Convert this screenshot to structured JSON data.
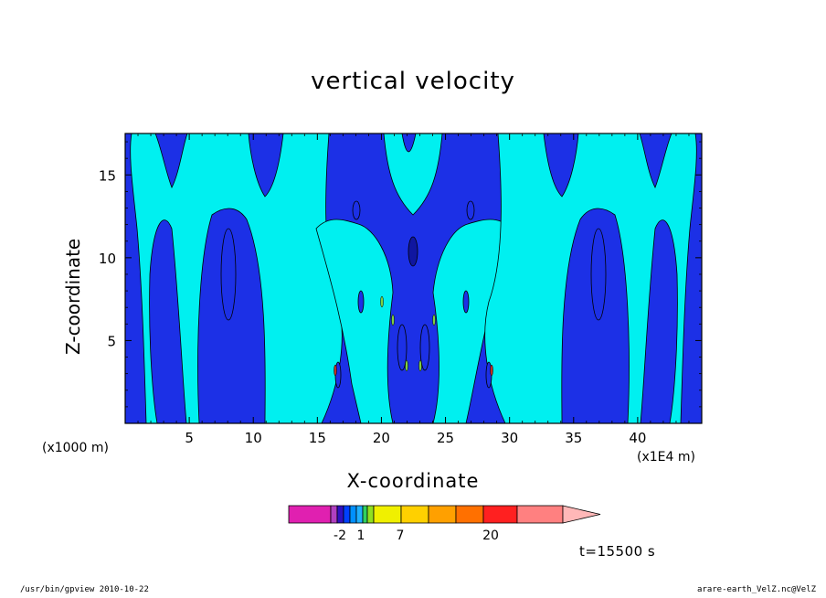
{
  "chart_data": {
    "type": "heatmap",
    "title": "vertical velocity",
    "xlabel": "X-coordinate",
    "ylabel": "Z-coordinate",
    "x_unit_left": "(x1000 m)",
    "x_unit_right": "(x1E4 m)",
    "xlim": [
      0,
      45
    ],
    "ylim": [
      0,
      17.5
    ],
    "x_ticks": [
      "5",
      "10",
      "15",
      "20",
      "25",
      "30",
      "35",
      "40"
    ],
    "y_ticks": [
      "5",
      "10",
      "15"
    ],
    "x_tick_values": [
      5,
      10,
      15,
      20,
      25,
      30,
      35,
      40
    ],
    "y_tick_values": [
      5,
      10,
      15
    ],
    "colorbar": {
      "labels": [
        "-2",
        "1",
        "7",
        "20"
      ],
      "colors": [
        "#e020b0",
        "#b040c0",
        "#3010c0",
        "#0040ff",
        "#0090ff",
        "#20b0ff",
        "#30d060",
        "#90e020",
        "#f0f000",
        "#ffd000",
        "#ffa000",
        "#ff7000",
        "#ff2020",
        "#ff8080",
        "#ffb8b8"
      ],
      "extend": "max"
    },
    "colors": {
      "background_field": "#1c30e6",
      "band": "#00f0f0",
      "core": "#1016a0",
      "speck_green": "#80d040",
      "speck_red": "#c03020"
    }
  },
  "time_label": "t=15500 s",
  "footer_left": "/usr/bin/gpview   2010-10-22",
  "footer_right": "arare-earth_VelZ.nc@VelZ"
}
